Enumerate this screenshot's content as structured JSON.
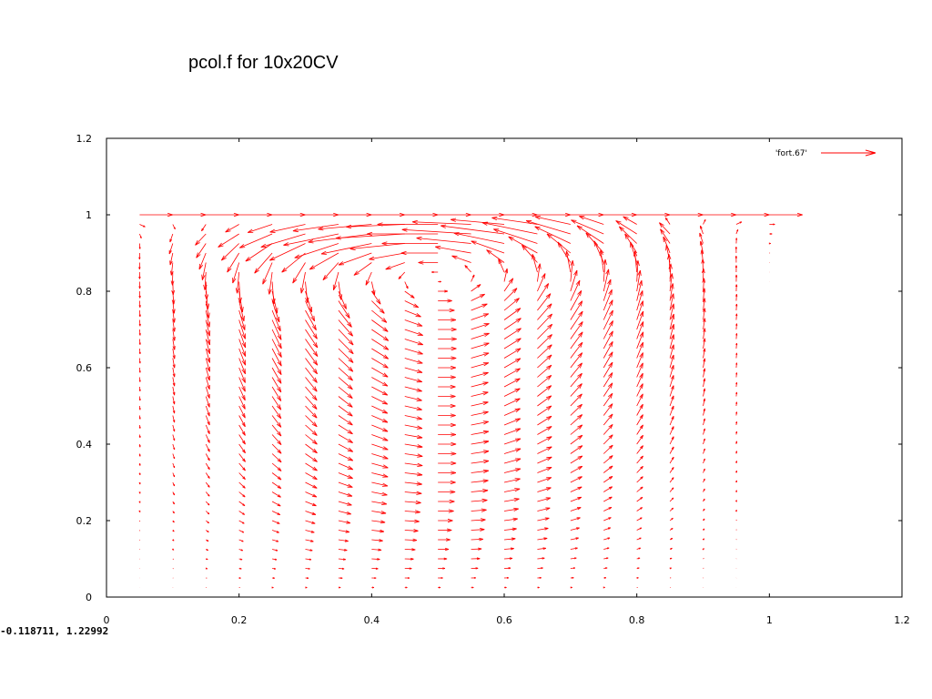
{
  "slide": {
    "title": "pcol.f for 10x20CV"
  },
  "readout": {
    "coordinates": "-0.118711,  1.22992"
  },
  "chart_data": {
    "type": "vector_field",
    "title": "",
    "xlabel": "",
    "ylabel": "",
    "xlim": [
      0,
      1.2
    ],
    "ylim": [
      0,
      1.2
    ],
    "xticks": [
      "0",
      "0.2",
      "0.4",
      "0.6",
      "0.8",
      "1",
      "1.2"
    ],
    "yticks": [
      "0",
      "0.2",
      "0.4",
      "0.6",
      "0.8",
      "1",
      "1.2"
    ],
    "grid": false,
    "legend_position": "top-right",
    "series": [
      {
        "name": "'fort.67'",
        "color": "#ff0000",
        "columns_x": [
          0.05,
          0.1,
          0.15,
          0.2,
          0.25,
          0.3,
          0.35,
          0.4,
          0.45,
          0.5,
          0.55,
          0.6,
          0.65,
          0.7,
          0.75,
          0.8,
          0.85,
          0.9,
          0.95,
          1.0
        ],
        "rows_y": [
          0,
          0.025,
          0.05,
          0.075,
          0.1,
          0.125,
          0.15,
          0.175,
          0.2,
          0.225,
          0.25,
          0.275,
          0.3,
          0.325,
          0.35,
          0.375,
          0.4,
          0.425,
          0.45,
          0.475,
          0.5,
          0.525,
          0.55,
          0.575,
          0.6,
          0.625,
          0.65,
          0.675,
          0.7,
          0.725,
          0.75,
          0.775,
          0.8,
          0.825,
          0.85,
          0.875,
          0.9,
          0.925,
          0.95,
          0.975,
          1.0
        ],
        "lid_speed": 1.0,
        "flow": "lid-driven cavity, clockwise primary vortex centred near (0.55, 0.55)"
      }
    ]
  },
  "colors": {
    "vector": "#ff0000",
    "axis": "#000000",
    "background": "#ffffff"
  }
}
